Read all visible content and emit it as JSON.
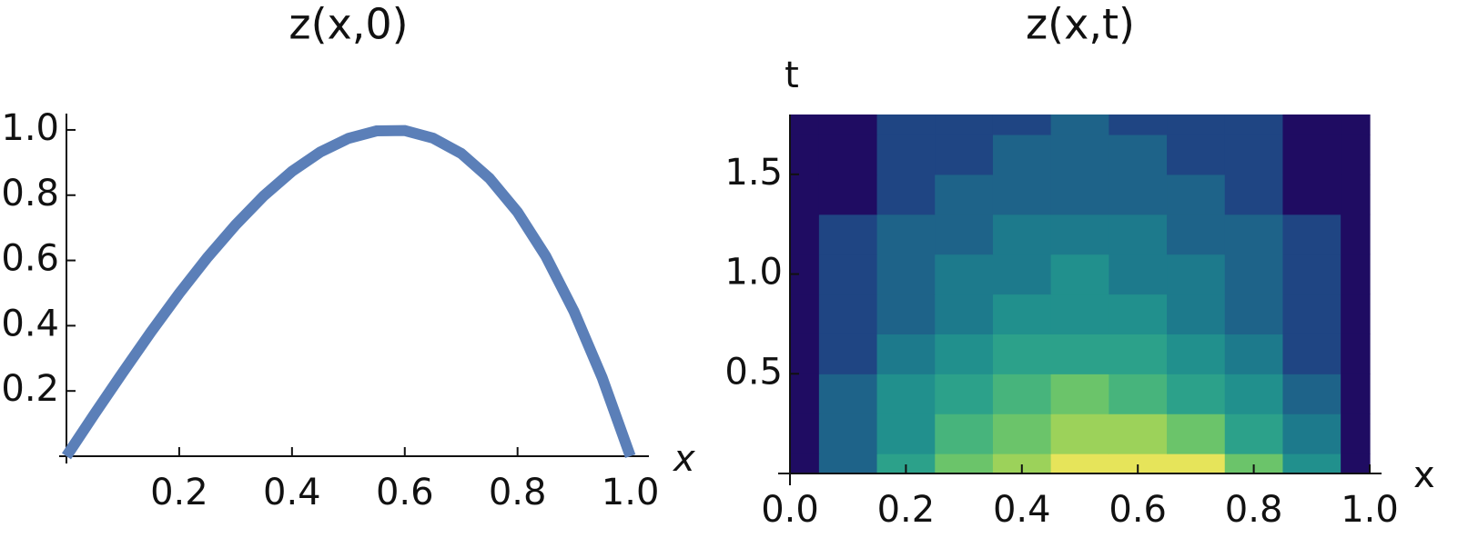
{
  "chart_data": [
    {
      "type": "line",
      "title": "z(x,0)",
      "x_label": "x",
      "color": "#5b7fb8",
      "x": [
        0,
        0.05,
        0.1,
        0.15,
        0.2,
        0.25,
        0.3,
        0.35,
        0.4,
        0.45,
        0.5,
        0.55,
        0.6,
        0.65,
        0.7,
        0.75,
        0.8,
        0.85,
        0.9,
        0.95,
        1.0
      ],
      "values": [
        0,
        0.13,
        0.257,
        0.381,
        0.499,
        0.609,
        0.709,
        0.798,
        0.873,
        0.932,
        0.974,
        0.997,
        0.998,
        0.975,
        0.928,
        0.852,
        0.748,
        0.613,
        0.444,
        0.241,
        0
      ],
      "xlim": [
        0,
        1.02
      ],
      "ylim": [
        0,
        1.05
      ],
      "xticks": [
        0.2,
        0.4,
        0.6,
        0.8,
        {
          "value": 1,
          "label": "1.0"
        }
      ],
      "yticks": [
        0.2,
        0.4,
        0.6,
        0.8,
        {
          "value": 1,
          "label": "1.0"
        }
      ]
    },
    {
      "type": "contour",
      "title": "z(x,t)",
      "x_label": "x",
      "y_label": "t",
      "x": [
        0,
        0.1,
        0.2,
        0.3,
        0.4,
        0.5,
        0.6,
        0.7,
        0.8,
        0.9,
        1.0
      ],
      "y": [
        0,
        0.2,
        0.4,
        0.6,
        0.8,
        1.0,
        1.2,
        1.4,
        1.6,
        1.8
      ],
      "z": [
        [
          0,
          0.26,
          0.5,
          0.71,
          0.87,
          0.97,
          1.0,
          0.93,
          0.75,
          0.44,
          0
        ],
        [
          0,
          0.24,
          0.45,
          0.63,
          0.76,
          0.82,
          0.81,
          0.73,
          0.56,
          0.31,
          0
        ],
        [
          0,
          0.22,
          0.41,
          0.56,
          0.66,
          0.7,
          0.66,
          0.56,
          0.41,
          0.22,
          0
        ],
        [
          0,
          0.18,
          0.34,
          0.47,
          0.55,
          0.58,
          0.55,
          0.47,
          0.34,
          0.18,
          0
        ],
        [
          0,
          0.15,
          0.29,
          0.39,
          0.46,
          0.49,
          0.46,
          0.39,
          0.29,
          0.15,
          0
        ],
        [
          0,
          0.13,
          0.24,
          0.33,
          0.39,
          0.41,
          0.39,
          0.33,
          0.24,
          0.13,
          0
        ],
        [
          0,
          0.11,
          0.2,
          0.28,
          0.32,
          0.34,
          0.32,
          0.28,
          0.2,
          0.11,
          0
        ],
        [
          0,
          0.09,
          0.17,
          0.23,
          0.27,
          0.28,
          0.27,
          0.23,
          0.17,
          0.09,
          0
        ],
        [
          0,
          0.07,
          0.14,
          0.19,
          0.23,
          0.24,
          0.23,
          0.19,
          0.14,
          0.07,
          0
        ],
        [
          0,
          0.06,
          0.12,
          0.16,
          0.19,
          0.2,
          0.19,
          0.16,
          0.12,
          0.06,
          0
        ]
      ],
      "levels": [
        0.1,
        0.2,
        0.3,
        0.4,
        0.5,
        0.6,
        0.7,
        0.8,
        0.9
      ],
      "colors": [
        "#1f0c62",
        "#1f4583",
        "#1e6389",
        "#1d7a8c",
        "#21908d",
        "#2ca18a",
        "#47b47c",
        "#6bc46a",
        "#9cd25a",
        "#e6e45a"
      ],
      "xlim": [
        0,
        1
      ],
      "ylim": [
        0,
        1.8
      ],
      "xticks": [
        {
          "value": 0,
          "label": "0.0"
        },
        0.2,
        0.4,
        0.6,
        0.8,
        {
          "value": 1,
          "label": "1.0"
        }
      ],
      "yticks": [
        0.5,
        {
          "value": 1,
          "label": "1.0"
        },
        1.5
      ]
    }
  ]
}
